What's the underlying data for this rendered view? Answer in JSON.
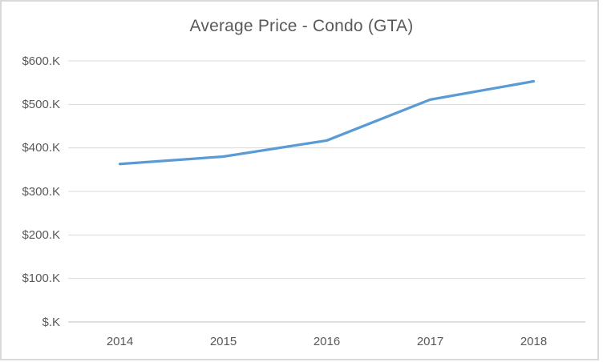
{
  "chart_data": {
    "type": "line",
    "title": "Average Price - Condo (GTA)",
    "categories": [
      "2014",
      "2015",
      "2016",
      "2017",
      "2018"
    ],
    "values": [
      363,
      380,
      417,
      511,
      553
    ],
    "values_unit": "$K",
    "xlabel": "",
    "ylabel": "",
    "ylim": [
      0,
      600
    ],
    "y_ticks": [
      {
        "value": 600,
        "label": "$600.K"
      },
      {
        "value": 500,
        "label": "$500.K"
      },
      {
        "value": 400,
        "label": "$400.K"
      },
      {
        "value": 300,
        "label": "$300.K"
      },
      {
        "value": 200,
        "label": "$200.K"
      },
      {
        "value": 100,
        "label": "$100.K"
      },
      {
        "value": 0,
        "label": "$.K"
      }
    ],
    "grid": "horizontal",
    "legend": "none",
    "colors": {
      "series_line": "#5b9bd5",
      "title_text": "#595959",
      "axis_text": "#595959",
      "gridline": "#d9d9d9",
      "axis_line": "#bfbfbf",
      "frame_border": "#d9d9d9",
      "background": "#ffffff"
    }
  }
}
